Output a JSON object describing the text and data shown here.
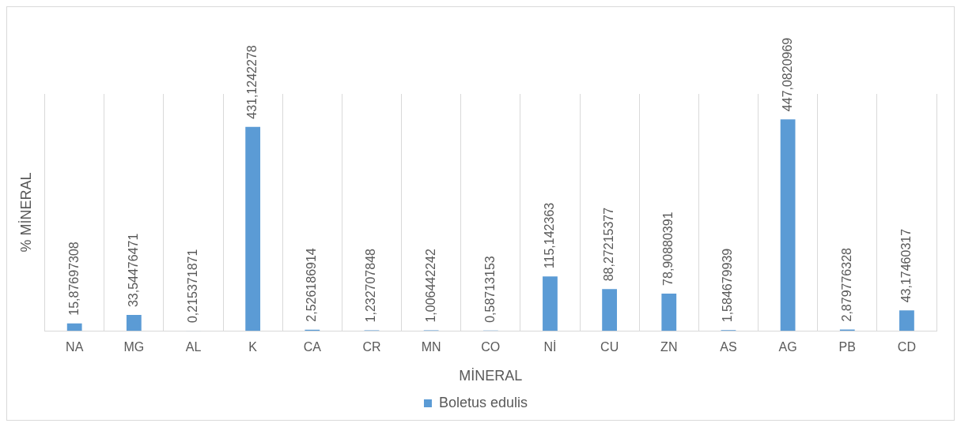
{
  "chart_data": {
    "type": "bar",
    "xlabel": "MİNERAL",
    "ylabel": "% MİNERAL",
    "categories": [
      "NA",
      "MG",
      "AL",
      "K",
      "CA",
      "CR",
      "MN",
      "CO",
      "Nİ",
      "CU",
      "ZN",
      "AS",
      "AG",
      "PB",
      "CD"
    ],
    "series": [
      {
        "name": "Boletus edulis",
        "color": "#5b9bd5",
        "values": [
          15.87697308,
          33.54476471,
          0.215371871,
          431.1242278,
          2.526186914,
          1.232707848,
          1.006442242,
          0.58713153,
          115.142363,
          88.27215377,
          78.90880391,
          1.584679939,
          447.0820969,
          2.879776328,
          43.17460317
        ],
        "value_labels": [
          "15,87697308",
          "33,54476471",
          "0,215371871",
          "431,1242278",
          "2,526186914",
          "1,232707848",
          "1,006442242",
          "0,58713153",
          "115,142363",
          "88,27215377",
          "78,90880391",
          "1,584679939",
          "447,0820969",
          "2,879776328",
          "43,17460317"
        ]
      }
    ],
    "grid": "x",
    "legend": "bottom"
  }
}
